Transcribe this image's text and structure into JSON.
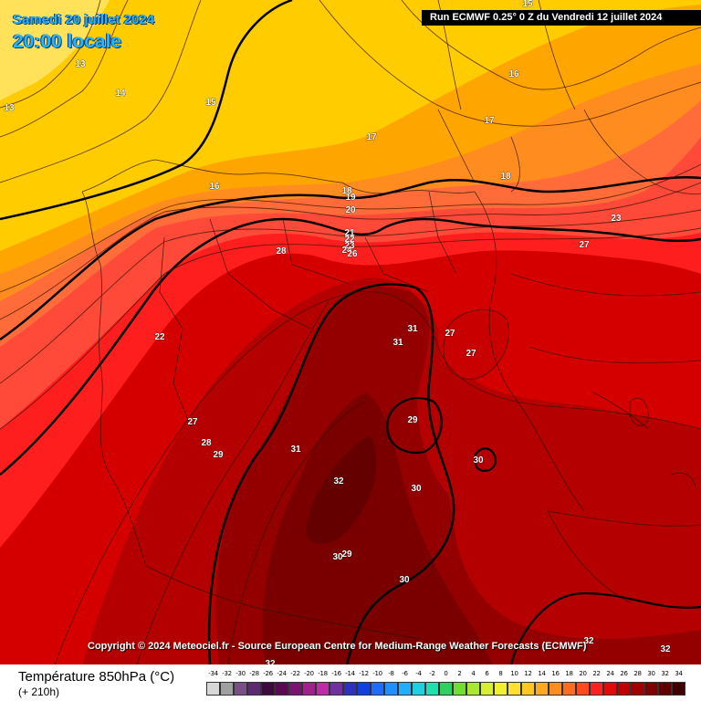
{
  "header": {
    "date": "Samedi 20 juillet 2024",
    "time": "20:00 locale",
    "run": "Run ECMWF 0.25° 0 Z du Vendredi 12 juillet 2024"
  },
  "copyright": "Copyright © 2024 Meteociel.fr - Source European Centre for Medium-Range Weather Forecasts (ECMWF)",
  "parameter": {
    "title": "Température 850hPa (°C)",
    "lead": "(+ 210h)"
  },
  "legend": {
    "labels": [
      "-34",
      "-32",
      "-30",
      "-28",
      "-26",
      "-24",
      "-22",
      "-20",
      "-18",
      "-16",
      "-14",
      "-12",
      "-10",
      "-8",
      "-6",
      "-4",
      "-2",
      "0",
      "2",
      "4",
      "6",
      "8",
      "10",
      "12",
      "14",
      "16",
      "18",
      "20",
      "22",
      "24",
      "26",
      "28",
      "30",
      "32",
      "34"
    ],
    "colors": [
      "#d8d8d8",
      "#a0a0a0",
      "#7a4f86",
      "#5c2a6e",
      "#3c0a3c",
      "#5a0a50",
      "#7a1470",
      "#a0208c",
      "#c02aa8",
      "#7030a0",
      "#3030c0",
      "#1040e0",
      "#1e6cff",
      "#2090ff",
      "#20b0ff",
      "#20d0e0",
      "#20e0b0",
      "#30d060",
      "#70e030",
      "#a8e830",
      "#d8f030",
      "#f0f030",
      "#ffe030",
      "#ffc820",
      "#ffa820",
      "#ff8c1e",
      "#ff6c1e",
      "#ff4a1e",
      "#ff2020",
      "#e00a0a",
      "#c00000",
      "#a00000",
      "#800000",
      "#600000",
      "#400000"
    ]
  },
  "map_labels": [
    {
      "text": "13"
    },
    {
      "text": "13"
    },
    {
      "text": "14"
    },
    {
      "text": "15"
    },
    {
      "text": "15"
    },
    {
      "text": "16"
    },
    {
      "text": "16"
    },
    {
      "text": "17"
    },
    {
      "text": "17"
    },
    {
      "text": "18"
    },
    {
      "text": "18"
    },
    {
      "text": "19"
    },
    {
      "text": "20"
    },
    {
      "text": "21"
    },
    {
      "text": "22"
    },
    {
      "text": "23"
    },
    {
      "text": "24"
    },
    {
      "text": "26"
    },
    {
      "text": "28"
    },
    {
      "text": "22"
    },
    {
      "text": "23"
    },
    {
      "text": "27"
    },
    {
      "text": "31"
    },
    {
      "text": "31"
    },
    {
      "text": "27"
    },
    {
      "text": "27"
    },
    {
      "text": "29"
    },
    {
      "text": "27"
    },
    {
      "text": "28"
    },
    {
      "text": "29"
    },
    {
      "text": "31"
    },
    {
      "text": "30"
    },
    {
      "text": "32"
    },
    {
      "text": "30"
    },
    {
      "text": "30"
    },
    {
      "text": "29"
    },
    {
      "text": "30"
    },
    {
      "text": "32"
    },
    {
      "text": "32"
    },
    {
      "text": "32"
    }
  ]
}
